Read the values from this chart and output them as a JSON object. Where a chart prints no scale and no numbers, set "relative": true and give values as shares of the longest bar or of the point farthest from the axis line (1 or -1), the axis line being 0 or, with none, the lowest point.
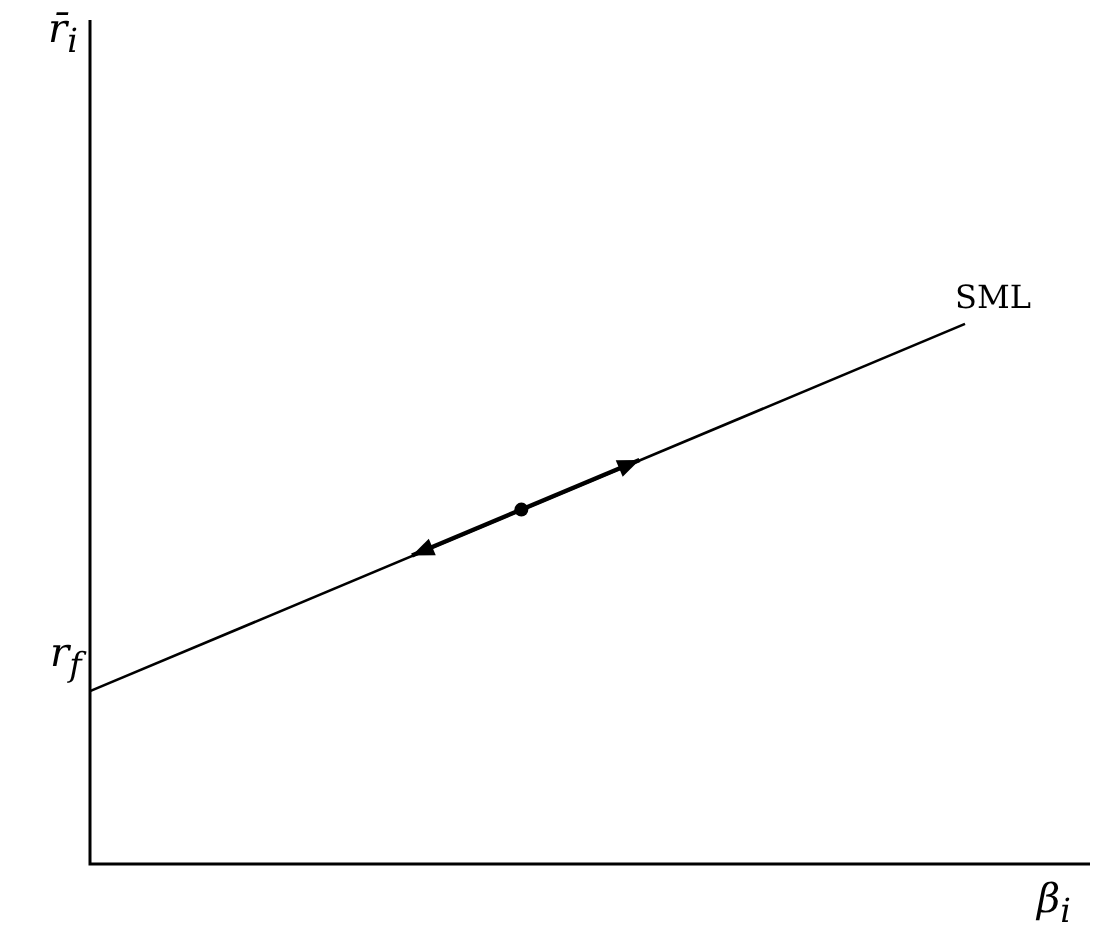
{
  "chart_data": {
    "type": "line",
    "relative": true,
    "xlabel": "β$_{i}$",
    "categories": [
      null,
      null,
      null,
      null,
      null,
      null,
      null,
      null,
      null
    ],
    "series": [
      {
        "name": "SML",
        "color": "#000000",
        "values": [
          0.32,
          null,
          null,
          null,
          null,
          null,
          null,
          1,
          null
        ]
      }
    ],
    "annotations": [
      "r̄$_{i}$",
      "r$_{f}$"
    ],
    "legend": false,
    "marker": "none",
    "line_style": "solid"
  }
}
